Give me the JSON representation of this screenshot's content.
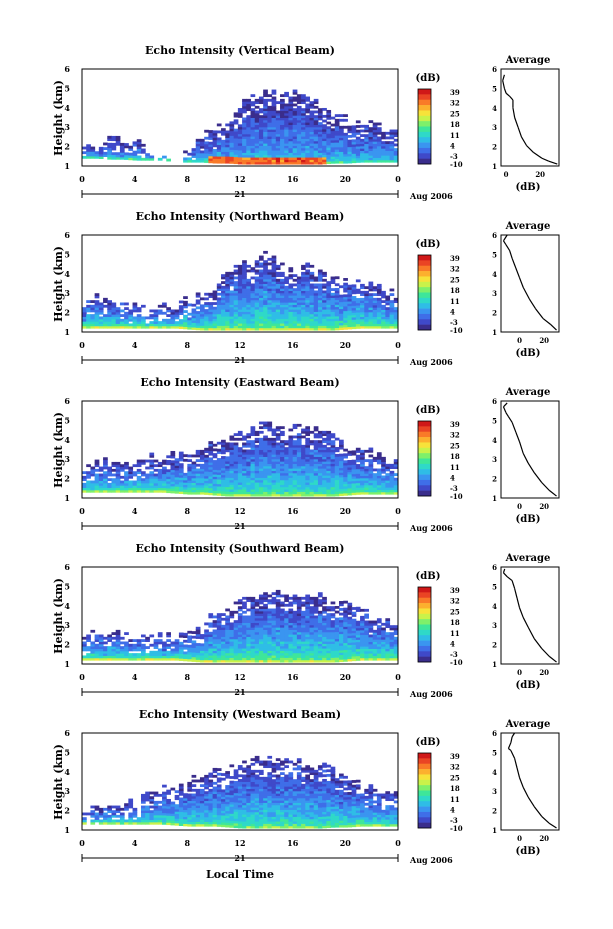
{
  "figure": {
    "xaxis_title": "Local Time",
    "date_day": "21",
    "date_month_year": "Aug 2006"
  },
  "colorbar": {
    "unit": "(dB)",
    "ticks": [
      "39",
      "32",
      "25",
      "18",
      "11",
      "4",
      "-3",
      "-10"
    ],
    "colors": [
      "#3a2d8c",
      "#3f49c9",
      "#3f6ee8",
      "#3a95f0",
      "#2fbde6",
      "#2fd9c8",
      "#3ee69a",
      "#7ef06a",
      "#c9f24a",
      "#f7e23a",
      "#fcb02e",
      "#f97a28",
      "#ea4424",
      "#d01818"
    ],
    "range": [
      -10,
      39
    ]
  },
  "chart_data": [
    {
      "type": "heatmap",
      "title": "Echo Intensity (Vertical Beam)",
      "ylabel": "Height (km)",
      "xlim": [
        0,
        24
      ],
      "ylim": [
        1,
        6
      ],
      "x_ticks": [
        "0",
        "4",
        "8",
        "12",
        "16",
        "20",
        "0"
      ],
      "y_ticks": [
        "1",
        "2",
        "3",
        "4",
        "5",
        "6"
      ],
      "top": [
        2.2,
        1.9,
        2.4,
        2.3,
        2.2,
        1.8,
        1.4,
        1.2,
        1.9,
        2.6,
        3.0,
        3.4,
        4.2,
        4.6,
        4.9,
        4.6,
        4.9,
        4.4,
        4.0,
        3.6,
        3.4,
        3.4,
        3.0,
        2.8,
        2.8
      ],
      "base": [
        1.4,
        1.4,
        1.35,
        1.35,
        1.3,
        1.3,
        1.3,
        1.2,
        1.2,
        1.2,
        1.15,
        1.15,
        1.1,
        1.1,
        1.1,
        1.1,
        1.1,
        1.1,
        1.1,
        1.15,
        1.15,
        1.2,
        1.2,
        1.2,
        1.2
      ],
      "bright_band": [
        9.5,
        18.5
      ],
      "bright_db": 36,
      "near_ground_db": 12,
      "top_db": -8,
      "profile": {
        "title": "Average",
        "xlabel": "(dB)",
        "xlim": [
          -3,
          31
        ],
        "x_ticks": [
          "0",
          "20"
        ],
        "y_ticks": [
          "1",
          "2",
          "3",
          "4",
          "5",
          "6"
        ],
        "points": [
          [
            30,
            1.1
          ],
          [
            25,
            1.25
          ],
          [
            21,
            1.4
          ],
          [
            16,
            1.7
          ],
          [
            12,
            2.05
          ],
          [
            9,
            2.5
          ],
          [
            7,
            3.0
          ],
          [
            5,
            3.5
          ],
          [
            4,
            4.0
          ],
          [
            4,
            4.4
          ],
          [
            2,
            4.6
          ],
          [
            0,
            4.75
          ],
          [
            -1,
            5.0
          ],
          [
            -2,
            5.4
          ],
          [
            -1,
            5.7
          ]
        ]
      }
    },
    {
      "type": "heatmap",
      "title": "Echo Intensity (Northward Beam)",
      "ylabel": "Height (km)",
      "xlim": [
        0,
        24
      ],
      "ylim": [
        1,
        6
      ],
      "x_ticks": [
        "0",
        "4",
        "8",
        "12",
        "16",
        "20",
        "0"
      ],
      "y_ticks": [
        "1",
        "2",
        "3",
        "4",
        "5",
        "6"
      ],
      "top": [
        2.4,
        2.9,
        2.6,
        2.4,
        2.4,
        2.2,
        2.3,
        2.3,
        2.6,
        2.9,
        3.4,
        4.0,
        4.4,
        4.6,
        5.1,
        4.4,
        4.3,
        4.6,
        4.0,
        3.8,
        3.6,
        3.6,
        3.2,
        3.0,
        2.8
      ],
      "base": [
        1.2,
        1.2,
        1.2,
        1.2,
        1.2,
        1.2,
        1.2,
        1.2,
        1.15,
        1.1,
        1.1,
        1.1,
        1.1,
        1.1,
        1.1,
        1.1,
        1.1,
        1.1,
        1.1,
        1.1,
        1.15,
        1.2,
        1.2,
        1.2,
        1.2
      ],
      "bright_band": [],
      "bright_db": 0,
      "near_ground_db": 20,
      "top_db": -7,
      "profile": {
        "title": "Average",
        "xlabel": "(dB)",
        "xlim": [
          -15,
          32
        ],
        "x_ticks": [
          "0",
          "20"
        ],
        "y_ticks": [
          "1",
          "2",
          "3",
          "4",
          "5",
          "6"
        ],
        "points": [
          [
            30,
            1.1
          ],
          [
            25,
            1.4
          ],
          [
            19,
            1.7
          ],
          [
            13,
            2.2
          ],
          [
            8,
            2.7
          ],
          [
            3,
            3.3
          ],
          [
            0,
            3.8
          ],
          [
            -3,
            4.3
          ],
          [
            -6,
            4.8
          ],
          [
            -8,
            5.2
          ],
          [
            -11,
            5.5
          ],
          [
            -13,
            5.7
          ],
          [
            -10,
            6.0
          ]
        ]
      }
    },
    {
      "type": "heatmap",
      "title": "Echo Intensity (Eastward Beam)",
      "ylabel": "Height (km)",
      "xlim": [
        0,
        24
      ],
      "ylim": [
        1,
        6
      ],
      "x_ticks": [
        "0",
        "4",
        "8",
        "12",
        "16",
        "20",
        "0"
      ],
      "y_ticks": [
        "1",
        "2",
        "3",
        "4",
        "5",
        "6"
      ],
      "top": [
        2.5,
        2.8,
        2.9,
        2.7,
        2.9,
        3.0,
        2.9,
        3.2,
        3.3,
        3.5,
        3.8,
        4.0,
        4.4,
        4.6,
        4.9,
        4.5,
        4.5,
        4.6,
        4.4,
        4.2,
        3.6,
        3.7,
        3.2,
        2.9,
        2.7
      ],
      "base": [
        1.3,
        1.3,
        1.3,
        1.3,
        1.3,
        1.3,
        1.3,
        1.25,
        1.2,
        1.2,
        1.15,
        1.1,
        1.1,
        1.1,
        1.1,
        1.1,
        1.1,
        1.1,
        1.1,
        1.1,
        1.15,
        1.2,
        1.2,
        1.2,
        1.2
      ],
      "bright_band": [],
      "bright_db": 0,
      "near_ground_db": 18,
      "top_db": -7,
      "profile": {
        "title": "Average",
        "xlabel": "(dB)",
        "xlim": [
          -15,
          32
        ],
        "x_ticks": [
          "0",
          "20"
        ],
        "y_ticks": [
          "1",
          "2",
          "3",
          "4",
          "5",
          "6"
        ],
        "points": [
          [
            30,
            1.1
          ],
          [
            24,
            1.4
          ],
          [
            18,
            1.8
          ],
          [
            12,
            2.3
          ],
          [
            7,
            2.8
          ],
          [
            3,
            3.3
          ],
          [
            0,
            3.9
          ],
          [
            -3,
            4.4
          ],
          [
            -6,
            4.9
          ],
          [
            -9,
            5.2
          ],
          [
            -11,
            5.4
          ],
          [
            -13,
            5.7
          ],
          [
            -10,
            5.9
          ]
        ]
      }
    },
    {
      "type": "heatmap",
      "title": "Echo Intensity (Southward Beam)",
      "ylabel": "Height (km)",
      "xlim": [
        0,
        24
      ],
      "ylim": [
        1,
        6
      ],
      "x_ticks": [
        "0",
        "4",
        "8",
        "12",
        "16",
        "20",
        "0"
      ],
      "y_ticks": [
        "1",
        "2",
        "3",
        "4",
        "5",
        "6"
      ],
      "top": [
        2.5,
        2.6,
        2.5,
        2.5,
        2.3,
        2.5,
        2.3,
        2.4,
        2.7,
        3.0,
        3.7,
        3.9,
        4.2,
        4.5,
        4.6,
        4.7,
        4.6,
        4.5,
        4.5,
        4.1,
        4.0,
        3.8,
        3.4,
        3.1,
        2.7
      ],
      "base": [
        1.2,
        1.2,
        1.2,
        1.2,
        1.2,
        1.2,
        1.2,
        1.2,
        1.15,
        1.1,
        1.1,
        1.1,
        1.1,
        1.1,
        1.1,
        1.1,
        1.1,
        1.1,
        1.1,
        1.1,
        1.15,
        1.2,
        1.2,
        1.2,
        1.2
      ],
      "bright_band": [],
      "bright_db": 0,
      "near_ground_db": 20,
      "top_db": -7,
      "profile": {
        "title": "Average",
        "xlabel": "(dB)",
        "xlim": [
          -15,
          32
        ],
        "x_ticks": [
          "0",
          "20"
        ],
        "y_ticks": [
          "1",
          "2",
          "3",
          "4",
          "5",
          "6"
        ],
        "points": [
          [
            30,
            1.1
          ],
          [
            24,
            1.4
          ],
          [
            18,
            1.8
          ],
          [
            12,
            2.3
          ],
          [
            7,
            2.9
          ],
          [
            3,
            3.4
          ],
          [
            0,
            3.9
          ],
          [
            -2,
            4.4
          ],
          [
            -4,
            4.9
          ],
          [
            -6,
            5.3
          ],
          [
            -10,
            5.5
          ],
          [
            -13,
            5.7
          ],
          [
            -12,
            5.9
          ]
        ]
      }
    },
    {
      "type": "heatmap",
      "title": "Echo Intensity (Westward Beam)",
      "ylabel": "Height (km)",
      "xlim": [
        0,
        24
      ],
      "ylim": [
        1,
        6
      ],
      "x_ticks": [
        "0",
        "4",
        "8",
        "12",
        "16",
        "20",
        "0"
      ],
      "y_ticks": [
        "1",
        "2",
        "3",
        "4",
        "5",
        "6"
      ],
      "top": [
        1.9,
        2.0,
        2.1,
        2.3,
        2.4,
        2.9,
        3.1,
        3.3,
        3.4,
        3.8,
        4.0,
        4.2,
        4.5,
        4.6,
        4.6,
        4.4,
        4.5,
        4.3,
        4.4,
        4.2,
        3.7,
        3.4,
        3.1,
        3.0,
        2.8
      ],
      "base": [
        1.3,
        1.3,
        1.3,
        1.3,
        1.3,
        1.3,
        1.3,
        1.25,
        1.2,
        1.2,
        1.2,
        1.15,
        1.1,
        1.1,
        1.1,
        1.1,
        1.1,
        1.1,
        1.1,
        1.15,
        1.15,
        1.2,
        1.2,
        1.2,
        1.2
      ],
      "bright_band": [],
      "bright_db": 0,
      "near_ground_db": 17,
      "top_db": -7,
      "profile": {
        "title": "Average",
        "xlabel": "(dB)",
        "xlim": [
          -15,
          32
        ],
        "x_ticks": [
          "0",
          "20"
        ],
        "y_ticks": [
          "1",
          "2",
          "3",
          "4",
          "5",
          "6"
        ],
        "points": [
          [
            30,
            1.1
          ],
          [
            24,
            1.35
          ],
          [
            18,
            1.7
          ],
          [
            12,
            2.2
          ],
          [
            7,
            2.7
          ],
          [
            3,
            3.2
          ],
          [
            0,
            3.7
          ],
          [
            -2,
            4.2
          ],
          [
            -4,
            4.7
          ],
          [
            -7,
            5.1
          ],
          [
            -9,
            5.2
          ],
          [
            -7,
            5.5
          ],
          [
            -6,
            5.8
          ],
          [
            -4,
            6.0
          ]
        ]
      }
    }
  ]
}
